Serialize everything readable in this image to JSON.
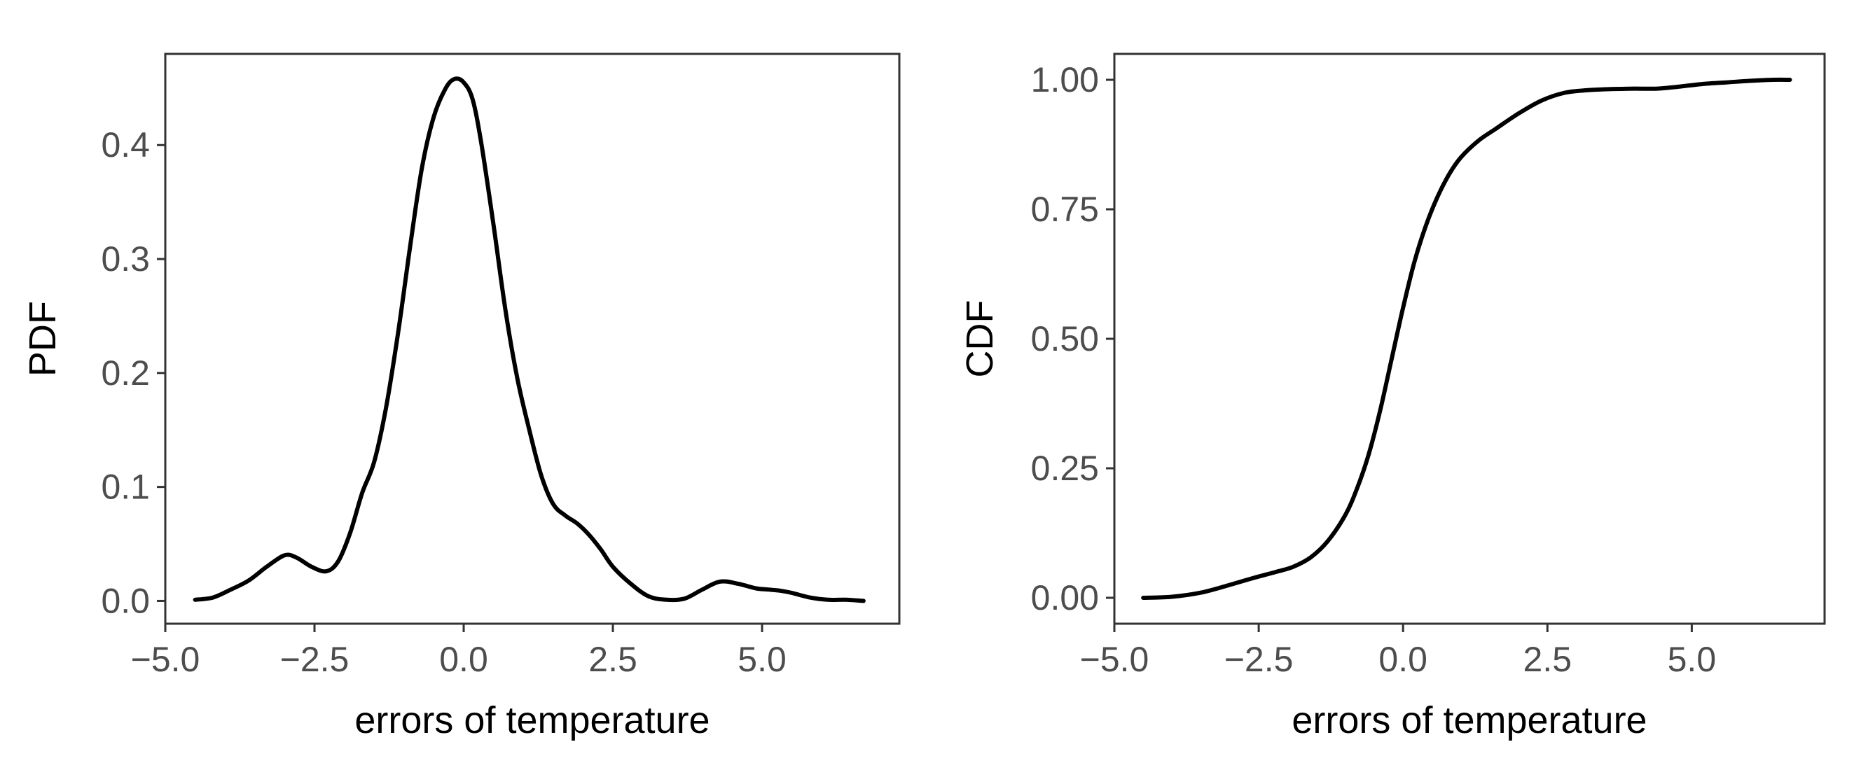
{
  "chart_data": [
    {
      "type": "line",
      "title": "",
      "xlabel": "errors of temperature",
      "ylabel": "PDF",
      "xlim": [
        -5.0,
        7.3
      ],
      "ylim": [
        -0.02,
        0.48
      ],
      "grid": false,
      "x_ticks": [
        -5.0,
        -2.5,
        0.0,
        2.5,
        5.0
      ],
      "x_tick_labels": [
        "−5.0",
        "−2.5",
        "0.0",
        "2.5",
        "5.0"
      ],
      "y_ticks": [
        0.0,
        0.1,
        0.2,
        0.3,
        0.4
      ],
      "y_tick_labels": [
        "0.0",
        "0.1",
        "0.2",
        "0.3",
        "0.4"
      ],
      "series": [
        {
          "x": [
            -4.5,
            -4.2,
            -3.9,
            -3.6,
            -3.3,
            -3.0,
            -2.8,
            -2.55,
            -2.3,
            -2.1,
            -1.9,
            -1.7,
            -1.5,
            -1.3,
            -1.1,
            -0.9,
            -0.7,
            -0.5,
            -0.3,
            -0.15,
            0.0,
            0.15,
            0.3,
            0.5,
            0.7,
            0.9,
            1.1,
            1.3,
            1.5,
            1.7,
            1.9,
            2.1,
            2.3,
            2.5,
            2.8,
            3.1,
            3.4,
            3.7,
            4.0,
            4.3,
            4.6,
            4.9,
            5.1,
            5.3,
            5.5,
            5.8,
            6.1,
            6.4,
            6.7
          ],
          "values": [
            0.001,
            0.003,
            0.01,
            0.018,
            0.03,
            0.04,
            0.038,
            0.03,
            0.026,
            0.035,
            0.06,
            0.095,
            0.122,
            0.17,
            0.235,
            0.31,
            0.38,
            0.425,
            0.45,
            0.458,
            0.455,
            0.44,
            0.4,
            0.33,
            0.255,
            0.195,
            0.15,
            0.11,
            0.085,
            0.075,
            0.068,
            0.058,
            0.045,
            0.03,
            0.015,
            0.004,
            0.001,
            0.002,
            0.01,
            0.017,
            0.015,
            0.011,
            0.01,
            0.009,
            0.007,
            0.003,
            0.001,
            0.001,
            0.0
          ]
        }
      ]
    },
    {
      "type": "line",
      "title": "",
      "xlabel": "errors of temperature",
      "ylabel": "CDF",
      "xlim": [
        -5.0,
        7.3
      ],
      "ylim": [
        -0.05,
        1.05
      ],
      "grid": false,
      "x_ticks": [
        -5.0,
        -2.5,
        0.0,
        2.5,
        5.0
      ],
      "x_tick_labels": [
        "−5.0",
        "−2.5",
        "0.0",
        "2.5",
        "5.0"
      ],
      "y_ticks": [
        0.0,
        0.25,
        0.5,
        0.75,
        1.0
      ],
      "y_tick_labels": [
        "0.00",
        "0.25",
        "0.50",
        "0.75",
        "1.00"
      ],
      "series": [
        {
          "x": [
            -4.5,
            -4.0,
            -3.5,
            -3.0,
            -2.6,
            -2.2,
            -1.9,
            -1.6,
            -1.3,
            -1.0,
            -0.8,
            -0.6,
            -0.4,
            -0.2,
            0.0,
            0.2,
            0.4,
            0.6,
            0.8,
            1.0,
            1.3,
            1.6,
            2.0,
            2.4,
            2.8,
            3.2,
            3.6,
            4.0,
            4.4,
            4.8,
            5.2,
            5.6,
            6.0,
            6.4,
            6.7
          ],
          "values": [
            0.0,
            0.002,
            0.01,
            0.025,
            0.038,
            0.05,
            0.06,
            0.078,
            0.11,
            0.16,
            0.21,
            0.275,
            0.36,
            0.46,
            0.56,
            0.65,
            0.72,
            0.775,
            0.818,
            0.85,
            0.882,
            0.905,
            0.935,
            0.96,
            0.975,
            0.98,
            0.982,
            0.983,
            0.983,
            0.987,
            0.992,
            0.995,
            0.998,
            1.0,
            1.0
          ]
        }
      ]
    }
  ]
}
